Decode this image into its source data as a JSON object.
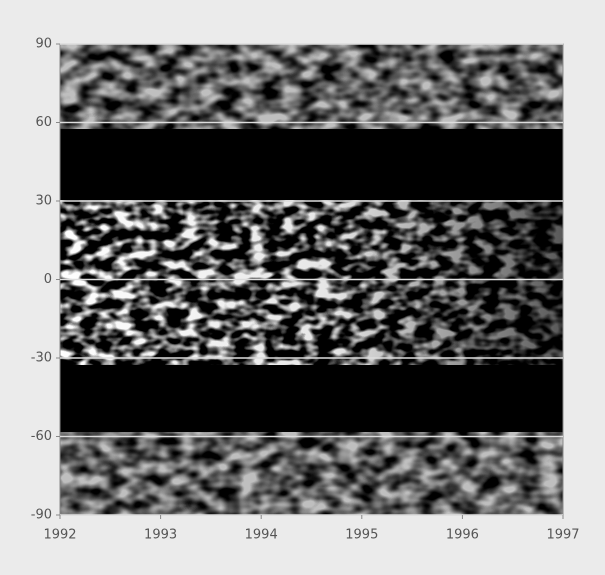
{
  "chart_data": {
    "type": "heatmap",
    "xlim": [
      1992,
      1997
    ],
    "xticks": [
      1992,
      1993,
      1994,
      1995,
      1996,
      1997
    ],
    "ylim": [
      -90,
      90
    ],
    "yticks": [
      -90,
      -60,
      -30,
      0,
      30,
      60,
      90
    ],
    "grid": true
  }
}
